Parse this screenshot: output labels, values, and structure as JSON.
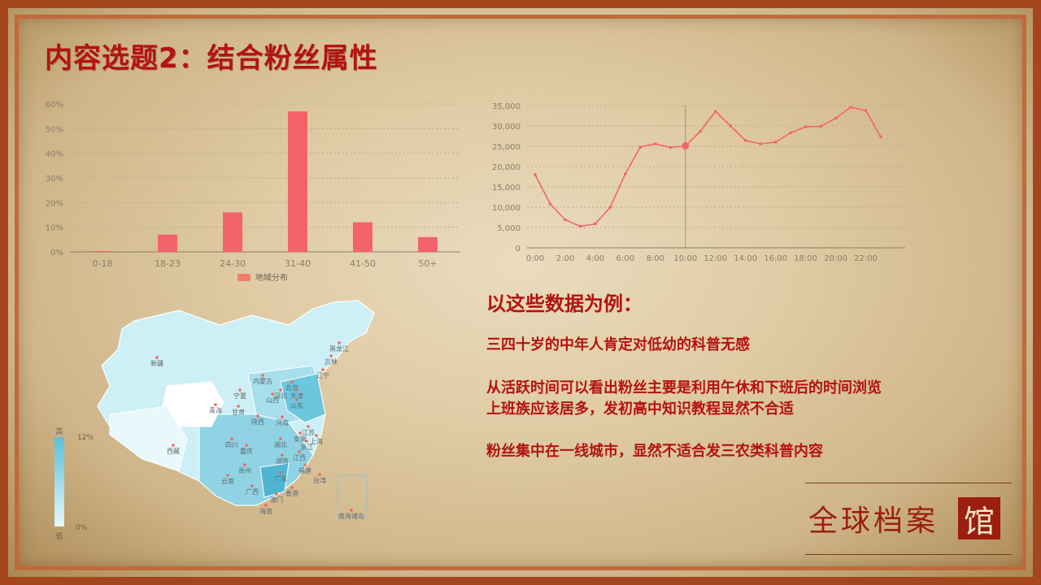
{
  "title": "内容选题2：结合粉丝属性",
  "colors": {
    "accent": "#b4130f",
    "bar": "#f4636b",
    "line": "#f4636b",
    "map_high": "#5bbfd8",
    "map_low": "#e6f7fb"
  },
  "age_chart": {
    "chart_data": {
      "type": "bar",
      "categories": [
        "0-18",
        "18-23",
        "24-30",
        "31-40",
        "41-50",
        "50+"
      ],
      "values": [
        0.3,
        7,
        16,
        57,
        12,
        6
      ],
      "ylim": [
        0,
        60
      ],
      "yticks": [
        "0%",
        "10%",
        "20%",
        "30%",
        "40%",
        "50%",
        "60%"
      ],
      "legend": "地域分布",
      "legend_position": "bottom"
    }
  },
  "time_chart": {
    "chart_data": {
      "type": "line",
      "x": [
        "0:00",
        "1:00",
        "2:00",
        "3:00",
        "4:00",
        "5:00",
        "6:00",
        "7:00",
        "8:00",
        "9:00",
        "10:00",
        "11:00",
        "12:00",
        "13:00",
        "14:00",
        "15:00",
        "16:00",
        "17:00",
        "18:00",
        "19:00",
        "20:00",
        "21:00",
        "22:00",
        "23:00"
      ],
      "xticks": [
        "0:00",
        "2:00",
        "4:00",
        "6:00",
        "8:00",
        "10:00",
        "12:00",
        "14:00",
        "16:00",
        "18:00",
        "20:00",
        "22:00"
      ],
      "values": [
        18000,
        10800,
        6900,
        5300,
        5900,
        10000,
        18200,
        24800,
        25600,
        24700,
        25100,
        28700,
        33600,
        30000,
        26400,
        25600,
        26000,
        28300,
        29800,
        29900,
        31900,
        34600,
        33800,
        27300
      ],
      "ylim": [
        0,
        35000
      ],
      "yticks": [
        "0",
        "5,000",
        "10,000",
        "15,000",
        "20,000",
        "25,000",
        "30,000",
        "35,000"
      ],
      "highlight_index": 10
    }
  },
  "map": {
    "legend_high": "高",
    "legend_low": "低",
    "legend_max": "12%",
    "legend_min": "0%",
    "labels": [
      "新疆",
      "西藏",
      "青海",
      "甘肃",
      "宁夏",
      "内蒙古",
      "黑龙江",
      "吉林",
      "辽宁",
      "北京",
      "天津",
      "河北",
      "山西",
      "山东",
      "陕西",
      "河南",
      "四川",
      "重庆",
      "湖北",
      "安徽",
      "江苏",
      "上海",
      "浙江",
      "湖南",
      "江西",
      "贵州",
      "云南",
      "广西",
      "广东",
      "福建",
      "台湾",
      "海南",
      "香港",
      "澳门",
      "南海诸岛"
    ]
  },
  "insights": {
    "heading": "以这些数据为例：",
    "p1": "三四十岁的中年人肯定对低幼的科普无感",
    "p2_line1": "从活跃时间可以看出粉丝主要是利用午休和下班后的时间浏览",
    "p2_line2": "上班族应该居多，发初高中知识教程显然不合适",
    "p3": "粉丝集中在一线城市，显然不适合发三农类科普内容"
  },
  "brand": {
    "text": "全球档案",
    "box": "馆"
  }
}
